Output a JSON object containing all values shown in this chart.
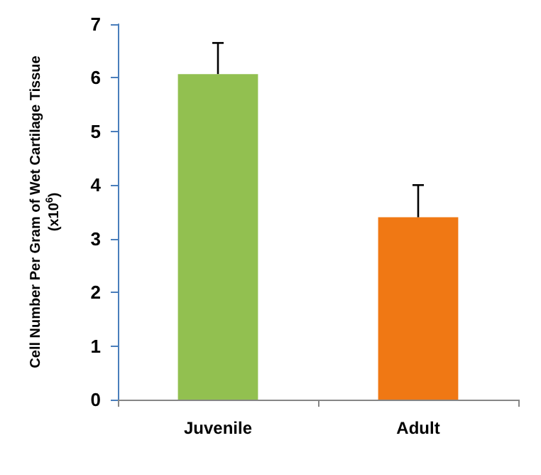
{
  "chart_data": {
    "type": "bar",
    "ylabel": "Cell Number Per Gram of Wet Cartilage Tissue\n(x10$^{6}$)",
    "categories": [
      "Juvenile",
      "Adult"
    ],
    "values": [
      6.07,
      3.4
    ],
    "colors": [
      "#92c050",
      "#f07814"
    ],
    "errors": [
      [
        6.07,
        6.65
      ],
      [
        3.4,
        4.0
      ]
    ],
    "ylim": [
      0,
      7
    ],
    "yticks": [
      0,
      1,
      2,
      3,
      4,
      5,
      6,
      7
    ],
    "grid": false
  }
}
